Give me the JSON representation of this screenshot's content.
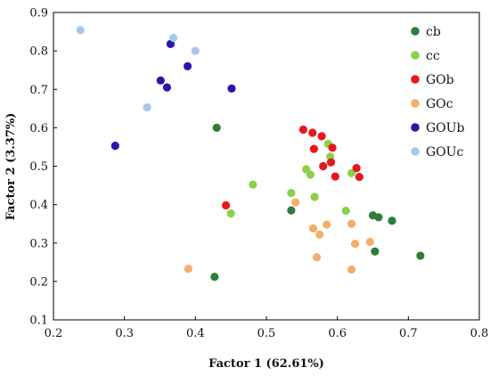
{
  "chart_data": {
    "type": "scatter",
    "title": "",
    "xlabel": "Factor 1 (62.61%)",
    "ylabel": "Factor 2 (3.37%)",
    "xlim": [
      0.2,
      0.8
    ],
    "ylim": [
      0.1,
      0.9
    ],
    "xticks": [
      "0.2",
      "0.3",
      "0.4",
      "0.5",
      "0.6",
      "0.7",
      "0.8"
    ],
    "yticks": [
      "0.1",
      "0.2",
      "0.3",
      "0.4",
      "0.5",
      "0.6",
      "0.7",
      "0.8",
      "0.9"
    ],
    "grid": false,
    "legend_position": "top-right",
    "series": [
      {
        "name": "cb",
        "color": "#2e7d3c",
        "points": [
          [
            0.43,
            0.6
          ],
          [
            0.427,
            0.212
          ],
          [
            0.535,
            0.385
          ],
          [
            0.65,
            0.372
          ],
          [
            0.658,
            0.367
          ],
          [
            0.677,
            0.358
          ],
          [
            0.653,
            0.278
          ],
          [
            0.717,
            0.267
          ]
        ]
      },
      {
        "name": "cc",
        "color": "#8bd04a",
        "points": [
          [
            0.481,
            0.452
          ],
          [
            0.45,
            0.377
          ],
          [
            0.535,
            0.43
          ],
          [
            0.556,
            0.492
          ],
          [
            0.562,
            0.478
          ],
          [
            0.568,
            0.42
          ],
          [
            0.587,
            0.558
          ],
          [
            0.59,
            0.525
          ],
          [
            0.612,
            0.384
          ],
          [
            0.62,
            0.482
          ]
        ]
      },
      {
        "name": "GOb",
        "color": "#e8161d",
        "points": [
          [
            0.552,
            0.595
          ],
          [
            0.565,
            0.587
          ],
          [
            0.578,
            0.578
          ],
          [
            0.567,
            0.545
          ],
          [
            0.593,
            0.548
          ],
          [
            0.58,
            0.5
          ],
          [
            0.591,
            0.51
          ],
          [
            0.597,
            0.473
          ],
          [
            0.627,
            0.495
          ],
          [
            0.631,
            0.472
          ],
          [
            0.443,
            0.398
          ]
        ]
      },
      {
        "name": "GOc",
        "color": "#f5ad6a",
        "points": [
          [
            0.541,
            0.406
          ],
          [
            0.566,
            0.338
          ],
          [
            0.575,
            0.322
          ],
          [
            0.585,
            0.348
          ],
          [
            0.62,
            0.35
          ],
          [
            0.571,
            0.263
          ],
          [
            0.625,
            0.298
          ],
          [
            0.646,
            0.303
          ],
          [
            0.62,
            0.231
          ],
          [
            0.39,
            0.233
          ]
        ]
      },
      {
        "name": "GOUb",
        "color": "#2b16a8",
        "points": [
          [
            0.365,
            0.818
          ],
          [
            0.389,
            0.76
          ],
          [
            0.351,
            0.723
          ],
          [
            0.36,
            0.705
          ],
          [
            0.451,
            0.702
          ],
          [
            0.287,
            0.553
          ]
        ]
      },
      {
        "name": "GOUc",
        "color": "#a6c8ea",
        "points": [
          [
            0.238,
            0.854
          ],
          [
            0.369,
            0.834
          ],
          [
            0.4,
            0.8
          ],
          [
            0.332,
            0.653
          ]
        ]
      }
    ]
  }
}
